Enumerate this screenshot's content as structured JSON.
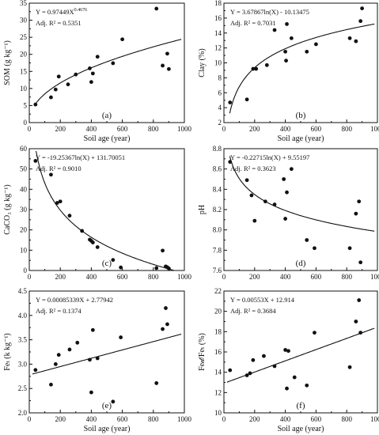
{
  "chart_data": [
    {
      "type": "scatter",
      "panel_label": "(a)",
      "equation": "Y = 0.97449X",
      "equation_exponent": "0.4676",
      "r2_text": "Adj. R² = 0.5351",
      "xlabel": "Soil age (year)",
      "ylabel": "SOM (g kg⁻¹)",
      "xlim": [
        0,
        1000
      ],
      "ylim": [
        0,
        35
      ],
      "xticks": [
        0,
        200,
        400,
        600,
        800,
        1000
      ],
      "yticks": [
        0,
        5,
        10,
        15,
        20,
        25,
        30,
        35
      ],
      "fit": {
        "model": "power",
        "a": 0.97449,
        "b": 0.4676
      },
      "x": [
        40,
        140,
        170,
        190,
        250,
        300,
        390,
        400,
        410,
        440,
        540,
        600,
        820,
        860,
        890,
        900
      ],
      "y": [
        5.3,
        7.4,
        9.7,
        13.5,
        11.2,
        14.1,
        15.9,
        11.9,
        14.4,
        19.3,
        17.4,
        24.4,
        33.4,
        16.7,
        20.2,
        15.7
      ]
    },
    {
      "type": "scatter",
      "panel_label": "(b)",
      "equation": "Y = 3.67867ln(X) - 10.13475",
      "r2_text": "Adj. R² = 0.7031",
      "xlabel": "Soil age (year)",
      "ylabel": "Clay (%)",
      "xlim": [
        0,
        1000
      ],
      "ylim": [
        2,
        18
      ],
      "xticks": [
        0,
        200,
        400,
        600,
        800,
        1000
      ],
      "yticks": [
        2,
        4,
        6,
        8,
        10,
        12,
        14,
        16,
        18
      ],
      "fit": {
        "model": "log",
        "a": 3.67867,
        "b": -10.13475
      },
      "x": [
        40,
        150,
        190,
        210,
        280,
        330,
        400,
        405,
        410,
        440,
        540,
        600,
        820,
        860,
        890,
        900
      ],
      "y": [
        4.7,
        5.1,
        9.2,
        9.2,
        9.7,
        14.4,
        11.5,
        10.3,
        15.2,
        13.3,
        11.5,
        12.5,
        13.3,
        12.9,
        15.6,
        17.3
      ]
    },
    {
      "type": "scatter",
      "panel_label": "(c)",
      "equation": "Y = -19.25367ln(X) + 131.70051",
      "r2_text": "Adj. R² = 0.9010",
      "xlabel": "",
      "ylabel": "CaCO₃ (g kg⁻¹)",
      "xlim": [
        0,
        1000
      ],
      "ylim": [
        0,
        60
      ],
      "xticks": [
        0,
        200,
        400,
        600,
        800,
        1000
      ],
      "yticks": [
        0,
        10,
        20,
        30,
        40,
        50,
        60
      ],
      "fit": {
        "model": "log",
        "a": -19.25367,
        "b": 131.70051
      },
      "x": [
        40,
        140,
        180,
        200,
        260,
        340,
        390,
        400,
        410,
        440,
        540,
        590,
        820,
        860,
        880,
        890,
        900
      ],
      "y": [
        54,
        47.2,
        33.3,
        34,
        27,
        19.5,
        15.2,
        14.6,
        13.8,
        11.5,
        5.2,
        1.5,
        1.2,
        9.8,
        2,
        1.6,
        1
      ]
    },
    {
      "type": "scatter",
      "panel_label": "(d)",
      "equation": "Y = -0.22715ln(X) + 9.55197",
      "r2_text": "Adj. R² = 0.3623",
      "xlabel": "",
      "ylabel": "pH",
      "xlim": [
        0,
        1000
      ],
      "ylim": [
        7.6,
        8.8
      ],
      "xticks": [
        0,
        200,
        400,
        600,
        800,
        1000
      ],
      "yticks": [
        7.6,
        7.8,
        8.0,
        8.2,
        8.4,
        8.6,
        8.8
      ],
      "fit": {
        "model": "log",
        "a": -0.22715,
        "b": 9.55197
      },
      "x": [
        40,
        150,
        180,
        200,
        270,
        330,
        390,
        400,
        410,
        440,
        540,
        590,
        820,
        860,
        880,
        890
      ],
      "y": [
        8.67,
        8.49,
        8.34,
        8.09,
        8.28,
        8.25,
        8.5,
        8.11,
        8.37,
        8.6,
        7.9,
        7.82,
        7.82,
        8.16,
        8.28,
        7.68
      ]
    },
    {
      "type": "scatter",
      "panel_label": "(e)",
      "equation": "Y = 0.00085339X + 2.77942",
      "r2_text": "Adj. R² = 0.1374",
      "xlabel": "Soil age (year)",
      "ylabel": "Feₜ (k kg⁻¹)",
      "xlim": [
        0,
        1000
      ],
      "ylim": [
        2.0,
        4.5
      ],
      "xticks": [
        0,
        200,
        400,
        600,
        800,
        1000
      ],
      "yticks": [
        2.0,
        2.5,
        3.0,
        3.5,
        4.0,
        4.5
      ],
      "fit": {
        "model": "linear",
        "a": 0.00085339,
        "b": 2.77942
      },
      "x": [
        40,
        140,
        170,
        190,
        260,
        310,
        390,
        400,
        410,
        440,
        540,
        590,
        820,
        860,
        880,
        890
      ],
      "y": [
        2.88,
        2.58,
        3.0,
        3.19,
        3.3,
        3.44,
        3.09,
        2.42,
        3.7,
        3.12,
        2.23,
        3.55,
        2.61,
        3.72,
        4.15,
        3.82
      ]
    },
    {
      "type": "scatter",
      "panel_label": "(f)",
      "equation": "Y = 0.00553X + 12.914",
      "r2_text": "Adj. R² = 0.3684",
      "xlabel": "Soil age (year)",
      "ylabel": "Fe𝒹/Feₜ (%)",
      "xlim": [
        0,
        1000
      ],
      "ylim": [
        10,
        22
      ],
      "xticks": [
        0,
        200,
        400,
        600,
        800,
        1000
      ],
      "yticks": [
        10,
        12,
        14,
        16,
        18,
        20,
        22
      ],
      "fit": {
        "model": "linear",
        "a": 0.00553,
        "b": 12.914
      },
      "x": [
        40,
        150,
        170,
        190,
        260,
        330,
        400,
        410,
        420,
        460,
        540,
        590,
        820,
        860,
        880,
        890
      ],
      "y": [
        14.2,
        13.7,
        13.9,
        15.2,
        15.6,
        14.6,
        16.2,
        12.4,
        16.1,
        13.5,
        12.7,
        17.9,
        14.5,
        19,
        21.1,
        17.9
      ]
    }
  ]
}
